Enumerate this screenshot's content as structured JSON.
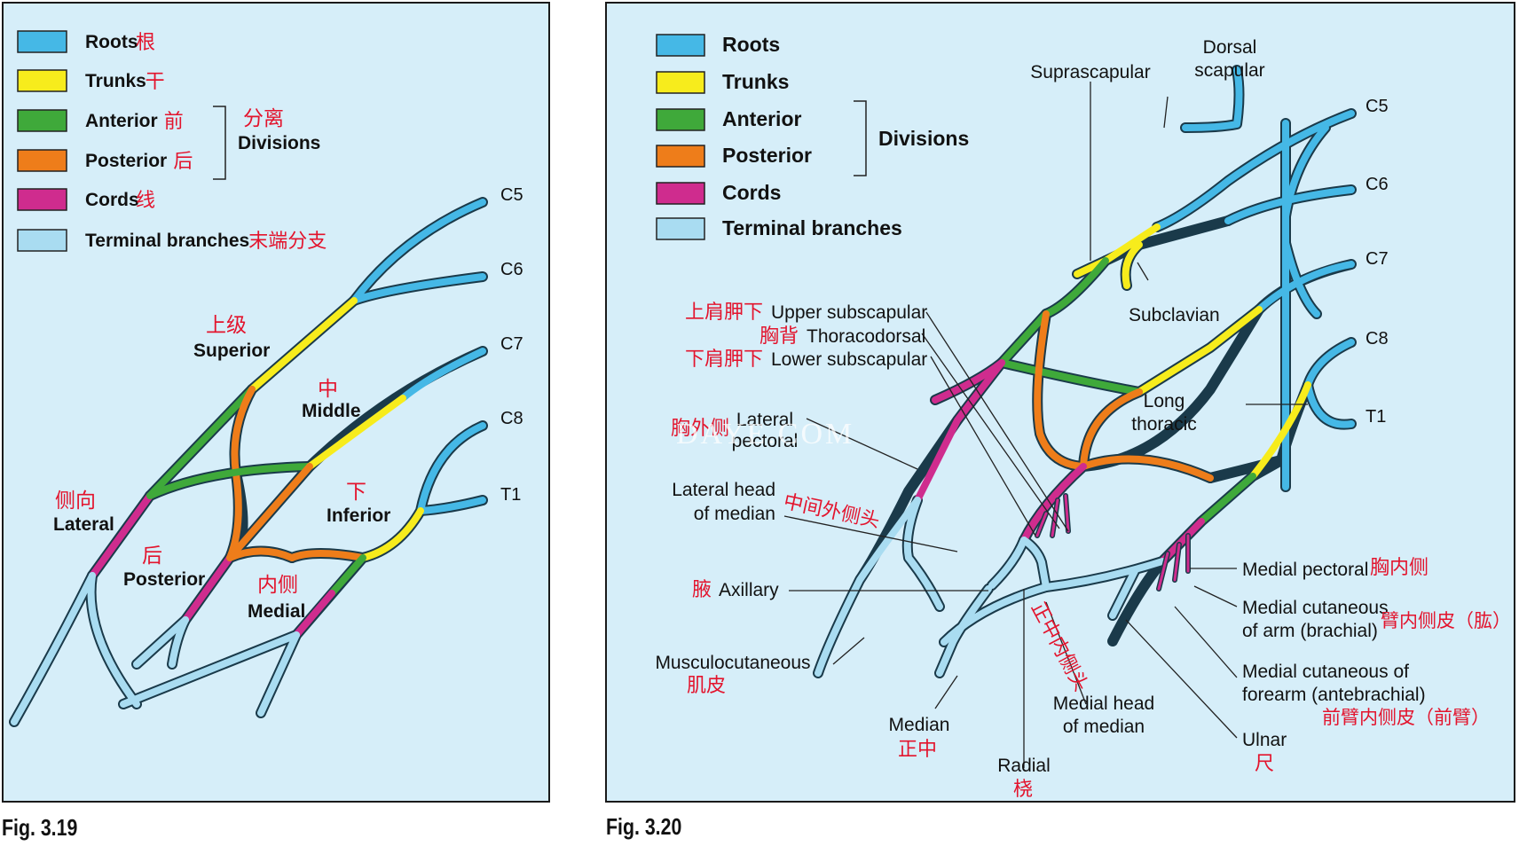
{
  "colors": {
    "roots": "#45b8e6",
    "trunks": "#f7ec1c",
    "anterior": "#3fa93a",
    "posterior": "#ee7d1a",
    "cords": "#cf2c8e",
    "terminal": "#a9dcf1",
    "panel_bg": "#d6eef9",
    "chinese_red": "#e3142d"
  },
  "fig319": {
    "caption": "Fig. 3.19",
    "legend": [
      {
        "key": "roots",
        "label": "Roots",
        "cn": "根"
      },
      {
        "key": "trunks",
        "label": "Trunks",
        "cn": "干"
      },
      {
        "key": "anterior",
        "label": "Anterior",
        "cn": "前"
      },
      {
        "key": "posterior",
        "label": "Posterior",
        "cn": "后"
      },
      {
        "key": "cords",
        "label": "Cords",
        "cn": "线"
      },
      {
        "key": "terminal",
        "label": "Terminal branches",
        "cn": "末端分支"
      }
    ],
    "divisions_label": "Divisions",
    "divisions_cn": "分离",
    "roots": [
      "C5",
      "C6",
      "C7",
      "C8",
      "T1"
    ],
    "labels": {
      "superior": "Superior",
      "superior_cn": "上级",
      "middle": "Middle",
      "middle_cn": "中",
      "inferior": "Inferior",
      "inferior_cn": "下",
      "lateral": "Lateral",
      "lateral_cn": "侧向",
      "posterior": "Posterior",
      "posterior_cn": "后",
      "medial": "Medial",
      "medial_cn": "内侧"
    }
  },
  "fig320": {
    "caption": "Fig. 3.20",
    "legend": [
      {
        "key": "roots",
        "label": "Roots"
      },
      {
        "key": "trunks",
        "label": "Trunks"
      },
      {
        "key": "anterior",
        "label": "Anterior"
      },
      {
        "key": "posterior",
        "label": "Posterior"
      },
      {
        "key": "cords",
        "label": "Cords"
      },
      {
        "key": "terminal",
        "label": "Terminal branches"
      }
    ],
    "divisions_label": "Divisions",
    "roots": [
      "C5",
      "C6",
      "C7",
      "C8",
      "T1"
    ],
    "watermark": "DAYE.COM",
    "labels": {
      "dorsal_scapular_1": "Dorsal",
      "dorsal_scapular_2": "scapular",
      "suprascapular": "Suprascapular",
      "subclavian": "Subclavian",
      "upper_subscapular": "Upper subscapular",
      "upper_subscapular_cn": "上肩胛下",
      "thoracodorsal": "Thoracodorsal",
      "thoracodorsal_cn": "胸背",
      "lower_subscapular": "Lower subscapular",
      "lower_subscapular_cn": "下肩胛下",
      "lateral_pectoral_1": "Lateral",
      "lateral_pectoral_2": "pectoral",
      "lateral_pectoral_cn": "胸外侧",
      "long_thoracic_1": "Long",
      "long_thoracic_2": "thoracic",
      "lateral_head_1": "Lateral head",
      "lateral_head_2": "of median",
      "lateral_head_cn": "中间外侧头",
      "axillary": "Axillary",
      "axillary_cn": "腋",
      "musculocutaneous": "Musculocutaneous",
      "musculocutaneous_cn": "肌皮",
      "median": "Median",
      "median_cn": "正中",
      "radial": "Radial",
      "radial_cn": "桡",
      "medial_head_1": "Medial head",
      "medial_head_2": "of median",
      "medial_head_cn": "正中内侧头",
      "ulnar": "Ulnar",
      "ulnar_cn": "尺",
      "medial_pectoral": "Medial pectoral",
      "medial_pectoral_cn": "胸内侧",
      "med_cut_arm_1": "Medial cutaneous",
      "med_cut_arm_2": "of arm (brachial)",
      "med_cut_arm_cn": "臂内侧皮（肱）",
      "med_cut_forearm_1": "Medial cutaneous of",
      "med_cut_forearm_2": "forearm (antebrachial)",
      "med_cut_forearm_cn": "前臂内侧皮（前臂）"
    }
  }
}
